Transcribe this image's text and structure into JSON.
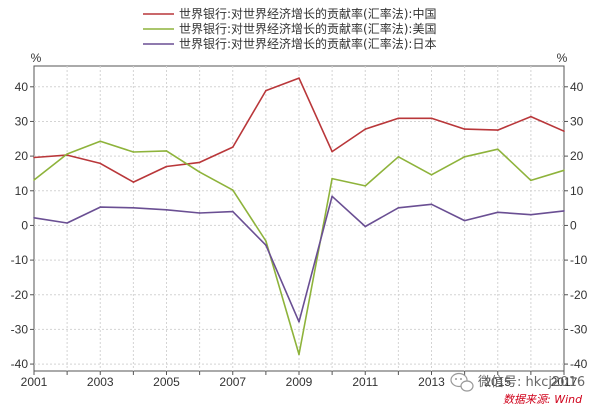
{
  "chart_data": {
    "type": "line",
    "x": [
      2001,
      2002,
      2003,
      2004,
      2005,
      2006,
      2007,
      2008,
      2009,
      2010,
      2011,
      2012,
      2013,
      2014,
      2015,
      2016,
      2017
    ],
    "series": [
      {
        "name": "世界银行:对世界经济增长的贡献率(汇率法):中国",
        "color": "#b9373a",
        "values": [
          19.6,
          20.3,
          17.9,
          12.5,
          17.0,
          18.2,
          22.6,
          38.9,
          42.5,
          21.3,
          27.8,
          30.9,
          30.9,
          27.8,
          27.5,
          31.4,
          27.2
        ]
      },
      {
        "name": "世界银行:对世界经济增长的贡献率(汇率法):美国",
        "color": "#8eb33b",
        "values": [
          13.1,
          20.6,
          24.3,
          21.2,
          21.5,
          15.4,
          10.2,
          -4.5,
          -37.2,
          13.5,
          11.4,
          19.8,
          14.6,
          19.8,
          22.0,
          13.0,
          15.9
        ]
      },
      {
        "name": "世界银行:对世界经济增长的贡献率(汇率法):日本",
        "color": "#6a4f93",
        "values": [
          2.2,
          0.7,
          5.3,
          5.1,
          4.5,
          3.6,
          4.0,
          -5.7,
          -27.8,
          8.4,
          -0.3,
          5.1,
          6.1,
          1.4,
          3.8,
          3.1,
          4.2
        ]
      }
    ],
    "xticks": [
      "2001",
      "2003",
      "2005",
      "2007",
      "2009",
      "2011",
      "2013",
      "2015",
      "2017"
    ],
    "yticks": [
      "-40",
      "-30",
      "-20",
      "-10",
      "0",
      "10",
      "20",
      "30",
      "40"
    ],
    "ylim": [
      -42,
      46
    ],
    "xlim": [
      2001,
      2017
    ],
    "grid": true,
    "legend": "top-center",
    "axis_unit_left": "%",
    "axis_unit_right": "%"
  },
  "watermark": {
    "text": "微信号: hkcj2016",
    "icon": "wechat-icon"
  },
  "source": {
    "text": "数据来源: Wind"
  }
}
